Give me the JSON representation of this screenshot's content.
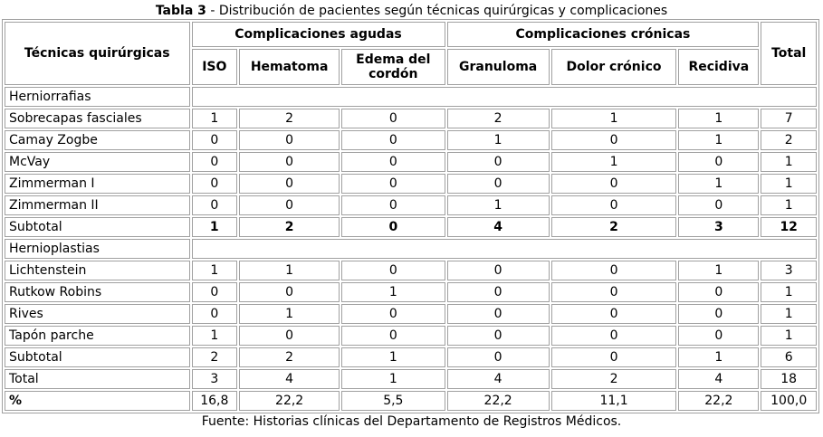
{
  "title": {
    "label": "Tabla 3",
    "text": " - Distribución de pacientes según técnicas quirúrgicas y complicaciones"
  },
  "headers": {
    "technique": "Técnicas quirúrgicas",
    "acute": "Complicaciones agudas",
    "chronic": "Complicaciones crónicas",
    "total": "Total",
    "columns": [
      "ISO",
      "Hematoma",
      "Edema del cordón",
      "Granuloma",
      "Dolor crónico",
      "Recidiva"
    ]
  },
  "rows": [
    {
      "type": "section",
      "label": "Herniorrafias"
    },
    {
      "label": "Sobrecapas fasciales",
      "values": [
        "1",
        "2",
        "0",
        "2",
        "1",
        "1",
        "7"
      ]
    },
    {
      "label": "Camay Zogbe",
      "values": [
        "0",
        "0",
        "0",
        "1",
        "0",
        "1",
        "2"
      ]
    },
    {
      "label": "McVay",
      "values": [
        "0",
        "0",
        "0",
        "0",
        "1",
        "0",
        "1"
      ]
    },
    {
      "label": "Zimmerman I",
      "values": [
        "0",
        "0",
        "0",
        "0",
        "0",
        "1",
        "1"
      ]
    },
    {
      "label": "Zimmerman II",
      "values": [
        "0",
        "0",
        "0",
        "1",
        "0",
        "0",
        "1"
      ]
    },
    {
      "label": "Subtotal",
      "values": [
        "1",
        "2",
        "0",
        "4",
        "2",
        "3",
        "12"
      ],
      "bold_values": true
    },
    {
      "type": "section",
      "label": "Hernioplastias"
    },
    {
      "label": "Lichtenstein",
      "values": [
        "1",
        "1",
        "0",
        "0",
        "0",
        "1",
        "3"
      ]
    },
    {
      "label": "Rutkow Robins",
      "values": [
        "0",
        "0",
        "1",
        "0",
        "0",
        "0",
        "1"
      ]
    },
    {
      "label": "Rives",
      "values": [
        "0",
        "1",
        "0",
        "0",
        "0",
        "0",
        "1"
      ]
    },
    {
      "label": "Tapón parche",
      "values": [
        "1",
        "0",
        "0",
        "0",
        "0",
        "0",
        "1"
      ]
    },
    {
      "label": "Subtotal",
      "values": [
        "2",
        "2",
        "1",
        "0",
        "0",
        "1",
        "6"
      ]
    },
    {
      "label": "Total",
      "values": [
        "3",
        "4",
        "1",
        "4",
        "2",
        "4",
        "18"
      ]
    },
    {
      "label": "%",
      "values": [
        "16,8",
        "22,2",
        "5,5",
        "22,2",
        "11,1",
        "22,2",
        "100,0"
      ],
      "bold_label": true
    }
  ],
  "source": "Fuente: Historias clínicas del Departamento de Registros Médicos."
}
